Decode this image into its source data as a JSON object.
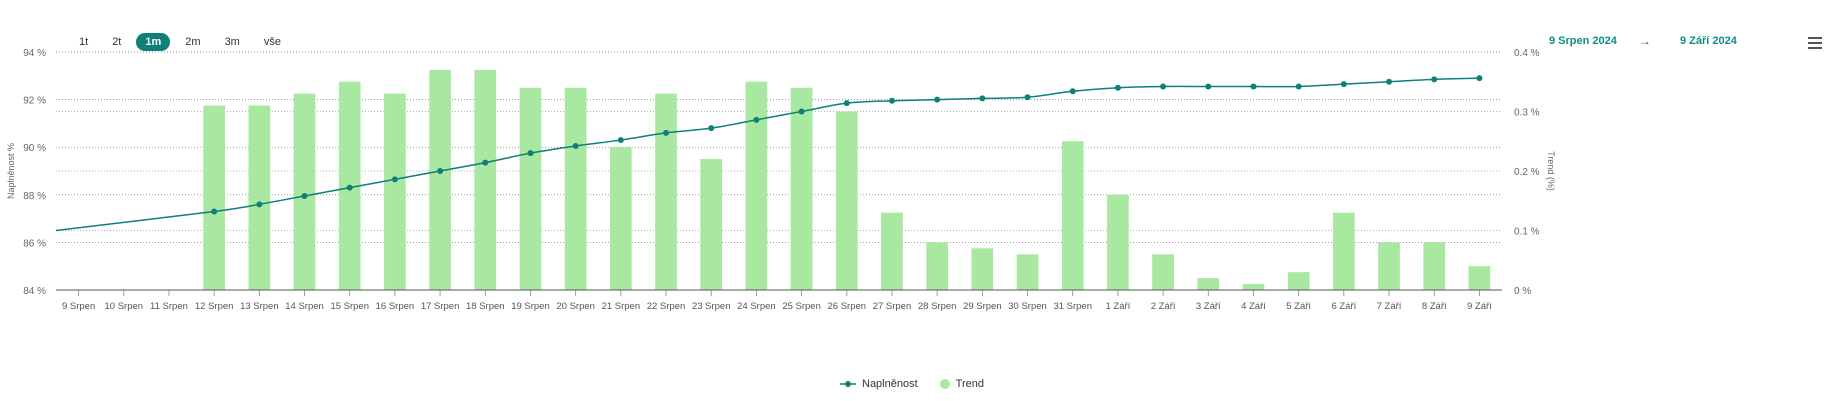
{
  "zoom": {
    "buttons": [
      "1t",
      "2t",
      "1m",
      "2m",
      "3m",
      "vše"
    ],
    "active": "1m"
  },
  "range": {
    "from": "9 Srpen 2024",
    "arrow": "→",
    "to": "9 Září 2024"
  },
  "colors": {
    "line": "#0f7f7a",
    "bar": "#a8e8a0",
    "accent": "#0f8d88"
  },
  "chart_data": {
    "type": "bar+line",
    "categories": [
      "9 Srpen",
      "10 Srpen",
      "11 Srpen",
      "12 Srpen",
      "13 Srpen",
      "14 Srpen",
      "15 Srpen",
      "16 Srpen",
      "17 Srpen",
      "18 Srpen",
      "19 Srpen",
      "20 Srpen",
      "21 Srpen",
      "22 Srpen",
      "23 Srpen",
      "24 Srpen",
      "25 Srpen",
      "26 Srpen",
      "27 Srpen",
      "28 Srpen",
      "29 Srpen",
      "30 Srpen",
      "31 Srpen",
      "1 Září",
      "2 Září",
      "3 Září",
      "4 Září",
      "5 Září",
      "6 Září",
      "7 Září",
      "8 Září",
      "9 Září"
    ],
    "series": [
      {
        "name": "Naplněnost",
        "type": "line",
        "axis": "left",
        "values": [
          null,
          null,
          null,
          87.3,
          87.6,
          87.95,
          88.3,
          88.65,
          89.0,
          89.35,
          89.75,
          90.05,
          90.3,
          90.6,
          90.8,
          91.15,
          91.5,
          91.85,
          91.95,
          92.0,
          92.05,
          92.1,
          92.35,
          92.5,
          92.55,
          92.55,
          92.55,
          92.55,
          92.65,
          92.75,
          92.85,
          92.9
        ],
        "lead_in_start": 86.5
      },
      {
        "name": "Trend",
        "type": "bar",
        "axis": "right",
        "values": [
          null,
          null,
          null,
          0.31,
          0.31,
          0.33,
          0.35,
          0.33,
          0.37,
          0.37,
          0.34,
          0.34,
          0.24,
          0.33,
          0.22,
          0.35,
          0.34,
          0.3,
          0.13,
          0.08,
          0.07,
          0.06,
          0.25,
          0.16,
          0.06,
          0.02,
          0.01,
          0.03,
          0.13,
          0.08,
          0.08,
          0.04
        ]
      }
    ],
    "y_left": {
      "label": "Naplněnost %",
      "min": 84,
      "max": 94,
      "ticks": [
        "84 %",
        "86 %",
        "88 %",
        "90 %",
        "92 %",
        "94 %"
      ]
    },
    "y_right": {
      "label": "Trend (%)",
      "min": 0,
      "max": 0.4,
      "ticks": [
        "0 %",
        "0.1 %",
        "0.2 %",
        "0.3 %",
        "0.4 %"
      ]
    },
    "legend": [
      "Naplněnost",
      "Trend"
    ],
    "legend_position": "bottom-center",
    "grid": true
  }
}
